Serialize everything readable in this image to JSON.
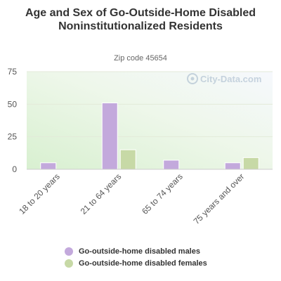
{
  "chart_data": {
    "type": "bar",
    "title": "Age and Sex of Go-Outside-Home Disabled Noninstitutionalized Residents",
    "subtitle": "Zip code 45654",
    "categories": [
      "18 to 20 years",
      "21 to 64 years",
      "65 to 74 years",
      "75 years and over"
    ],
    "series": [
      {
        "name": "Go-outside-home disabled males",
        "color": "#c3a9dc",
        "values": [
          5,
          51,
          7,
          5
        ]
      },
      {
        "name": "Go-outside-home disabled females",
        "color": "#c7d9a6",
        "values": [
          0,
          15,
          0,
          9
        ]
      }
    ],
    "ylim": [
      0,
      75
    ],
    "yticks": [
      0,
      25,
      50,
      75
    ],
    "xlabel": "",
    "ylabel": "",
    "grid": true,
    "legend_position": "bottom"
  },
  "watermark": "City-Data.com"
}
